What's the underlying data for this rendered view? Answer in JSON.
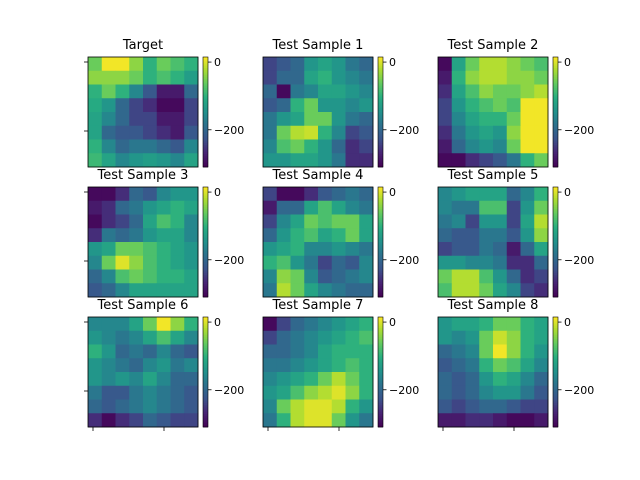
{
  "chart_data": {
    "type": "heatmap",
    "colormap": "viridis",
    "vmin": -310,
    "vmax": 15,
    "colorbar_ticks": [
      0,
      -200
    ],
    "grid_size": [
      8,
      8
    ],
    "panels": [
      {
        "title": "Target",
        "values": [
          [
            -60,
            10,
            10,
            -40,
            -100,
            -60,
            -80,
            -100
          ],
          [
            -40,
            -40,
            -40,
            -60,
            -100,
            -80,
            -100,
            -130
          ],
          [
            -100,
            -60,
            -100,
            -160,
            -220,
            -280,
            -280,
            -200
          ],
          [
            -110,
            -140,
            -200,
            -240,
            -260,
            -300,
            -300,
            -240
          ],
          [
            -120,
            -160,
            -200,
            -240,
            -240,
            -280,
            -280,
            -240
          ],
          [
            -120,
            -200,
            -220,
            -220,
            -240,
            -260,
            -280,
            -220
          ],
          [
            -100,
            -160,
            -200,
            -180,
            -180,
            -200,
            -220,
            -160
          ],
          [
            -90,
            -120,
            -160,
            -140,
            -130,
            -140,
            -160,
            -120
          ]
        ]
      },
      {
        "title": "Test Sample 1",
        "values": [
          [
            -240,
            -220,
            -200,
            -140,
            -120,
            -140,
            -180,
            -200
          ],
          [
            -240,
            -200,
            -200,
            -120,
            -100,
            -140,
            -160,
            -180
          ],
          [
            -200,
            -300,
            -180,
            -160,
            -120,
            -120,
            -140,
            -160
          ],
          [
            -220,
            -200,
            -100,
            -60,
            -140,
            -140,
            -160,
            -140
          ],
          [
            -180,
            -140,
            -120,
            -60,
            -60,
            -140,
            -180,
            -200
          ],
          [
            -180,
            -60,
            -20,
            -10,
            -100,
            -160,
            -240,
            -220
          ],
          [
            -160,
            -80,
            -60,
            -100,
            -140,
            -200,
            -260,
            -240
          ],
          [
            -140,
            -140,
            -120,
            -120,
            -140,
            -180,
            -260,
            -260
          ]
        ]
      },
      {
        "title": "Test Sample 2",
        "values": [
          [
            -300,
            -120,
            -60,
            -20,
            -20,
            -40,
            -60,
            -80
          ],
          [
            -280,
            -100,
            -40,
            -20,
            -20,
            -40,
            -40,
            -60
          ],
          [
            -260,
            -120,
            -80,
            -40,
            -60,
            -60,
            -40,
            -20
          ],
          [
            -240,
            -140,
            -100,
            -80,
            -60,
            -80,
            10,
            10
          ],
          [
            -240,
            -160,
            -120,
            -100,
            -100,
            -60,
            10,
            10
          ],
          [
            -260,
            -180,
            -140,
            -120,
            -140,
            -40,
            10,
            10
          ],
          [
            -280,
            -200,
            -160,
            -140,
            -160,
            -60,
            10,
            10
          ],
          [
            -300,
            -300,
            -260,
            -240,
            -220,
            -180,
            -100,
            -60
          ]
        ]
      },
      {
        "title": "Test Sample 3",
        "values": [
          [
            -300,
            -300,
            -260,
            -200,
            -220,
            -160,
            -140,
            -140
          ],
          [
            -280,
            -260,
            -200,
            -180,
            -140,
            -120,
            -100,
            -120
          ],
          [
            -300,
            -260,
            -240,
            -200,
            -120,
            -80,
            -100,
            -160
          ],
          [
            -260,
            -180,
            -200,
            -180,
            -140,
            -120,
            -120,
            -160
          ],
          [
            -140,
            -120,
            -60,
            -60,
            -80,
            -100,
            -120,
            -140
          ],
          [
            -160,
            -60,
            0,
            -40,
            -80,
            -100,
            -120,
            -140
          ],
          [
            -200,
            -160,
            -80,
            -60,
            -80,
            -100,
            -100,
            -120
          ],
          [
            -220,
            -200,
            -160,
            -120,
            -120,
            -120,
            -120,
            -120
          ]
        ]
      },
      {
        "title": "Test Sample 4",
        "values": [
          [
            -240,
            -300,
            -300,
            -260,
            -220,
            -200,
            -180,
            -200
          ],
          [
            -280,
            -200,
            -200,
            -120,
            -80,
            -120,
            -160,
            -180
          ],
          [
            -240,
            -160,
            -120,
            -60,
            -80,
            -60,
            -60,
            -120
          ],
          [
            -200,
            -140,
            -100,
            -80,
            -120,
            -100,
            -60,
            -120
          ],
          [
            -140,
            -120,
            -100,
            -160,
            -160,
            -140,
            -160,
            -180
          ],
          [
            -100,
            -80,
            -140,
            -180,
            -240,
            -200,
            -220,
            -160
          ],
          [
            -160,
            -40,
            -60,
            -160,
            -220,
            -200,
            -180,
            -160
          ],
          [
            -180,
            -20,
            -60,
            -120,
            -160,
            -180,
            -200,
            -200
          ]
        ]
      },
      {
        "title": "Test Sample 5",
        "values": [
          [
            -160,
            -140,
            -120,
            -120,
            -120,
            -200,
            -160,
            -100
          ],
          [
            -160,
            -180,
            -180,
            -80,
            -80,
            -240,
            -140,
            -60
          ],
          [
            -180,
            -160,
            -240,
            -140,
            -140,
            -240,
            -120,
            -20
          ],
          [
            -200,
            -220,
            -220,
            -180,
            -180,
            -220,
            -140,
            -40
          ],
          [
            -240,
            -220,
            -220,
            -180,
            -200,
            -280,
            -200,
            -120
          ],
          [
            -140,
            -140,
            -160,
            -160,
            -180,
            -260,
            -260,
            -200
          ],
          [
            -60,
            -20,
            -20,
            -80,
            -140,
            -200,
            -260,
            -240
          ],
          [
            -80,
            -20,
            -20,
            -60,
            -120,
            -160,
            -240,
            -260
          ]
        ]
      },
      {
        "title": "Test Sample 6",
        "values": [
          [
            -160,
            -160,
            -160,
            -120,
            -60,
            10,
            -40,
            -100
          ],
          [
            -140,
            -160,
            -180,
            -160,
            -120,
            -80,
            -120,
            -160
          ],
          [
            -100,
            -140,
            -200,
            -180,
            -200,
            -160,
            -200,
            -220
          ],
          [
            -140,
            -160,
            -180,
            -200,
            -160,
            -140,
            -180,
            -160
          ],
          [
            -140,
            -160,
            -140,
            -160,
            -120,
            -160,
            -200,
            -200
          ],
          [
            -180,
            -220,
            -220,
            -180,
            -160,
            -180,
            -200,
            -220
          ],
          [
            -200,
            -220,
            -200,
            -180,
            -160,
            -180,
            -200,
            -220
          ],
          [
            -260,
            -300,
            -260,
            -240,
            -200,
            -220,
            -240,
            -240
          ]
        ]
      },
      {
        "title": "Test Sample 7",
        "values": [
          [
            -300,
            -240,
            -200,
            -180,
            -160,
            -140,
            -120,
            -100
          ],
          [
            -240,
            -200,
            -180,
            -160,
            -140,
            -120,
            -100,
            -80
          ],
          [
            -200,
            -200,
            -180,
            -160,
            -120,
            -100,
            -100,
            -100
          ],
          [
            -180,
            -180,
            -160,
            -140,
            -120,
            -100,
            -80,
            -100
          ],
          [
            -160,
            -140,
            -120,
            -100,
            -60,
            -20,
            -60,
            -100
          ],
          [
            -140,
            -120,
            -80,
            -40,
            -20,
            0,
            -40,
            -100
          ],
          [
            -160,
            -60,
            -20,
            0,
            0,
            -20,
            -100,
            -140
          ],
          [
            -180,
            -100,
            -20,
            0,
            0,
            -60,
            -140,
            -180
          ]
        ]
      },
      {
        "title": "Test Sample 8",
        "values": [
          [
            -140,
            -120,
            -120,
            -100,
            -60,
            -60,
            -100,
            -120
          ],
          [
            -140,
            -160,
            -140,
            -60,
            -10,
            -40,
            -100,
            -120
          ],
          [
            -200,
            -180,
            -160,
            -60,
            10,
            -40,
            -100,
            -140
          ],
          [
            -220,
            -200,
            -180,
            -100,
            -60,
            -80,
            -120,
            -160
          ],
          [
            -200,
            -220,
            -200,
            -140,
            -100,
            -120,
            -160,
            -200
          ],
          [
            -200,
            -220,
            -200,
            -160,
            -140,
            -140,
            -180,
            -220
          ],
          [
            -220,
            -240,
            -220,
            -200,
            -200,
            -220,
            -240,
            -240
          ],
          [
            -280,
            -280,
            -260,
            -260,
            -280,
            -300,
            -300,
            -280
          ]
        ]
      }
    ]
  }
}
